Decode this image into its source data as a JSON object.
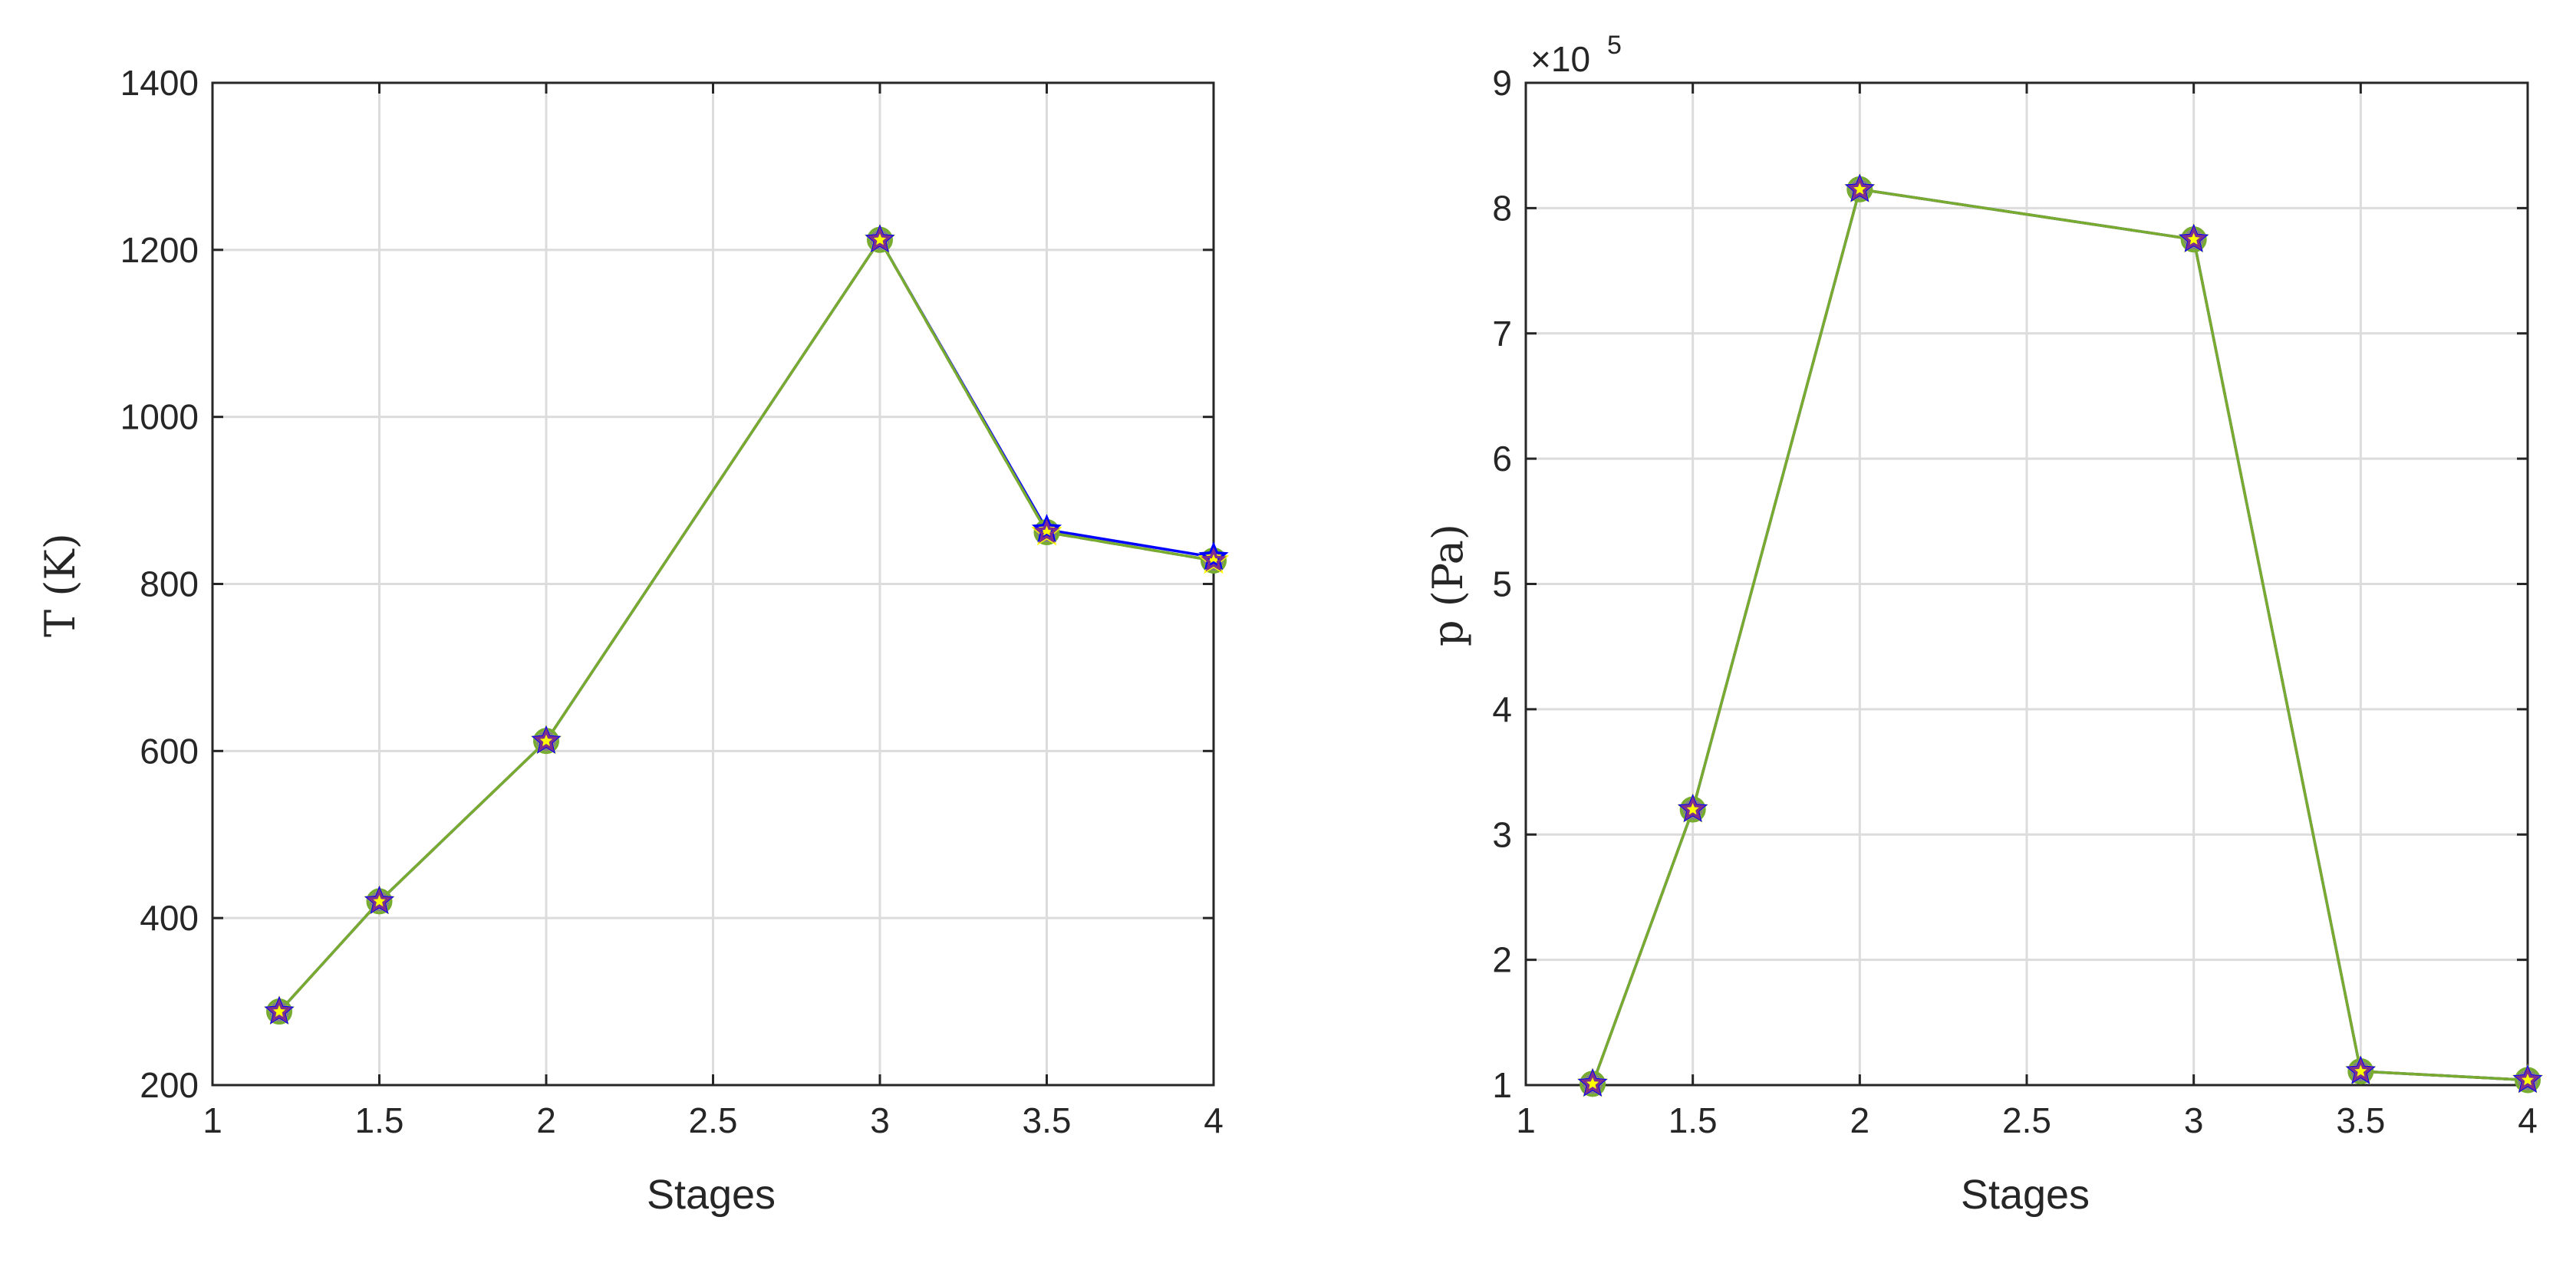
{
  "chart_data": [
    {
      "type": "line",
      "title": "",
      "xlabel": "Stages",
      "ylabel": "T (K)",
      "xlim": [
        1,
        4
      ],
      "ylim": [
        200,
        1400
      ],
      "xticks": [
        1,
        1.5,
        2,
        2.5,
        3,
        3.5,
        4
      ],
      "yticks": [
        200,
        400,
        600,
        800,
        1000,
        1200,
        1400
      ],
      "xtick_labels": [
        "1",
        "1.5",
        "2",
        "2.5",
        "3",
        "3.5",
        "4"
      ],
      "ytick_labels": [
        "200",
        "400",
        "600",
        "800",
        "1000",
        "1200",
        "1400"
      ],
      "grid": true,
      "x": [
        1.2,
        1.5,
        2,
        3,
        3.5,
        4
      ],
      "series": [
        {
          "color": "#0000ff",
          "marker": "star",
          "values": [
            288,
            420,
            612,
            1212,
            865,
            832
          ]
        },
        {
          "color": "#ffff00",
          "marker": "star",
          "values": [
            288,
            420,
            612,
            1212,
            862,
            828
          ]
        },
        {
          "color": "#7f7f7f",
          "marker": "circle",
          "values": [
            288,
            420,
            612,
            1212,
            862,
            828
          ]
        },
        {
          "color": "#7e2f8e",
          "marker": "star",
          "values": [
            288,
            420,
            612,
            1212,
            862,
            828
          ]
        },
        {
          "color": "#77ac30",
          "marker": "circle",
          "values": [
            288,
            420,
            612,
            1212,
            862,
            828
          ]
        }
      ]
    },
    {
      "type": "line",
      "title": "",
      "xlabel": "Stages",
      "ylabel": "p (Pa)",
      "exponent_label": "×10",
      "exponent": "5",
      "xlim": [
        1,
        4
      ],
      "ylim": [
        1,
        9
      ],
      "xticks": [
        1,
        1.5,
        2,
        2.5,
        3,
        3.5,
        4
      ],
      "yticks": [
        1,
        2,
        3,
        4,
        5,
        6,
        7,
        8,
        9
      ],
      "xtick_labels": [
        "1",
        "1.5",
        "2",
        "2.5",
        "3",
        "3.5",
        "4"
      ],
      "ytick_labels": [
        "1",
        "2",
        "3",
        "4",
        "5",
        "6",
        "7",
        "8",
        "9"
      ],
      "grid": true,
      "x": [
        1.2,
        1.5,
        2,
        3,
        3.5,
        4
      ],
      "series": [
        {
          "color": "#0000ff",
          "marker": "star",
          "values": [
            1.01,
            3.2,
            8.15,
            7.75,
            1.11,
            1.04
          ]
        },
        {
          "color": "#ffff00",
          "marker": "star",
          "values": [
            1.01,
            3.2,
            8.15,
            7.75,
            1.11,
            1.04
          ]
        },
        {
          "color": "#7f7f7f",
          "marker": "circle",
          "values": [
            1.01,
            3.2,
            8.15,
            7.75,
            1.11,
            1.04
          ]
        },
        {
          "color": "#7e2f8e",
          "marker": "star",
          "values": [
            1.01,
            3.2,
            8.15,
            7.75,
            1.11,
            1.04
          ]
        },
        {
          "color": "#77ac30",
          "marker": "circle",
          "values": [
            1.01,
            3.2,
            8.15,
            7.75,
            1.11,
            1.04
          ]
        }
      ]
    }
  ]
}
